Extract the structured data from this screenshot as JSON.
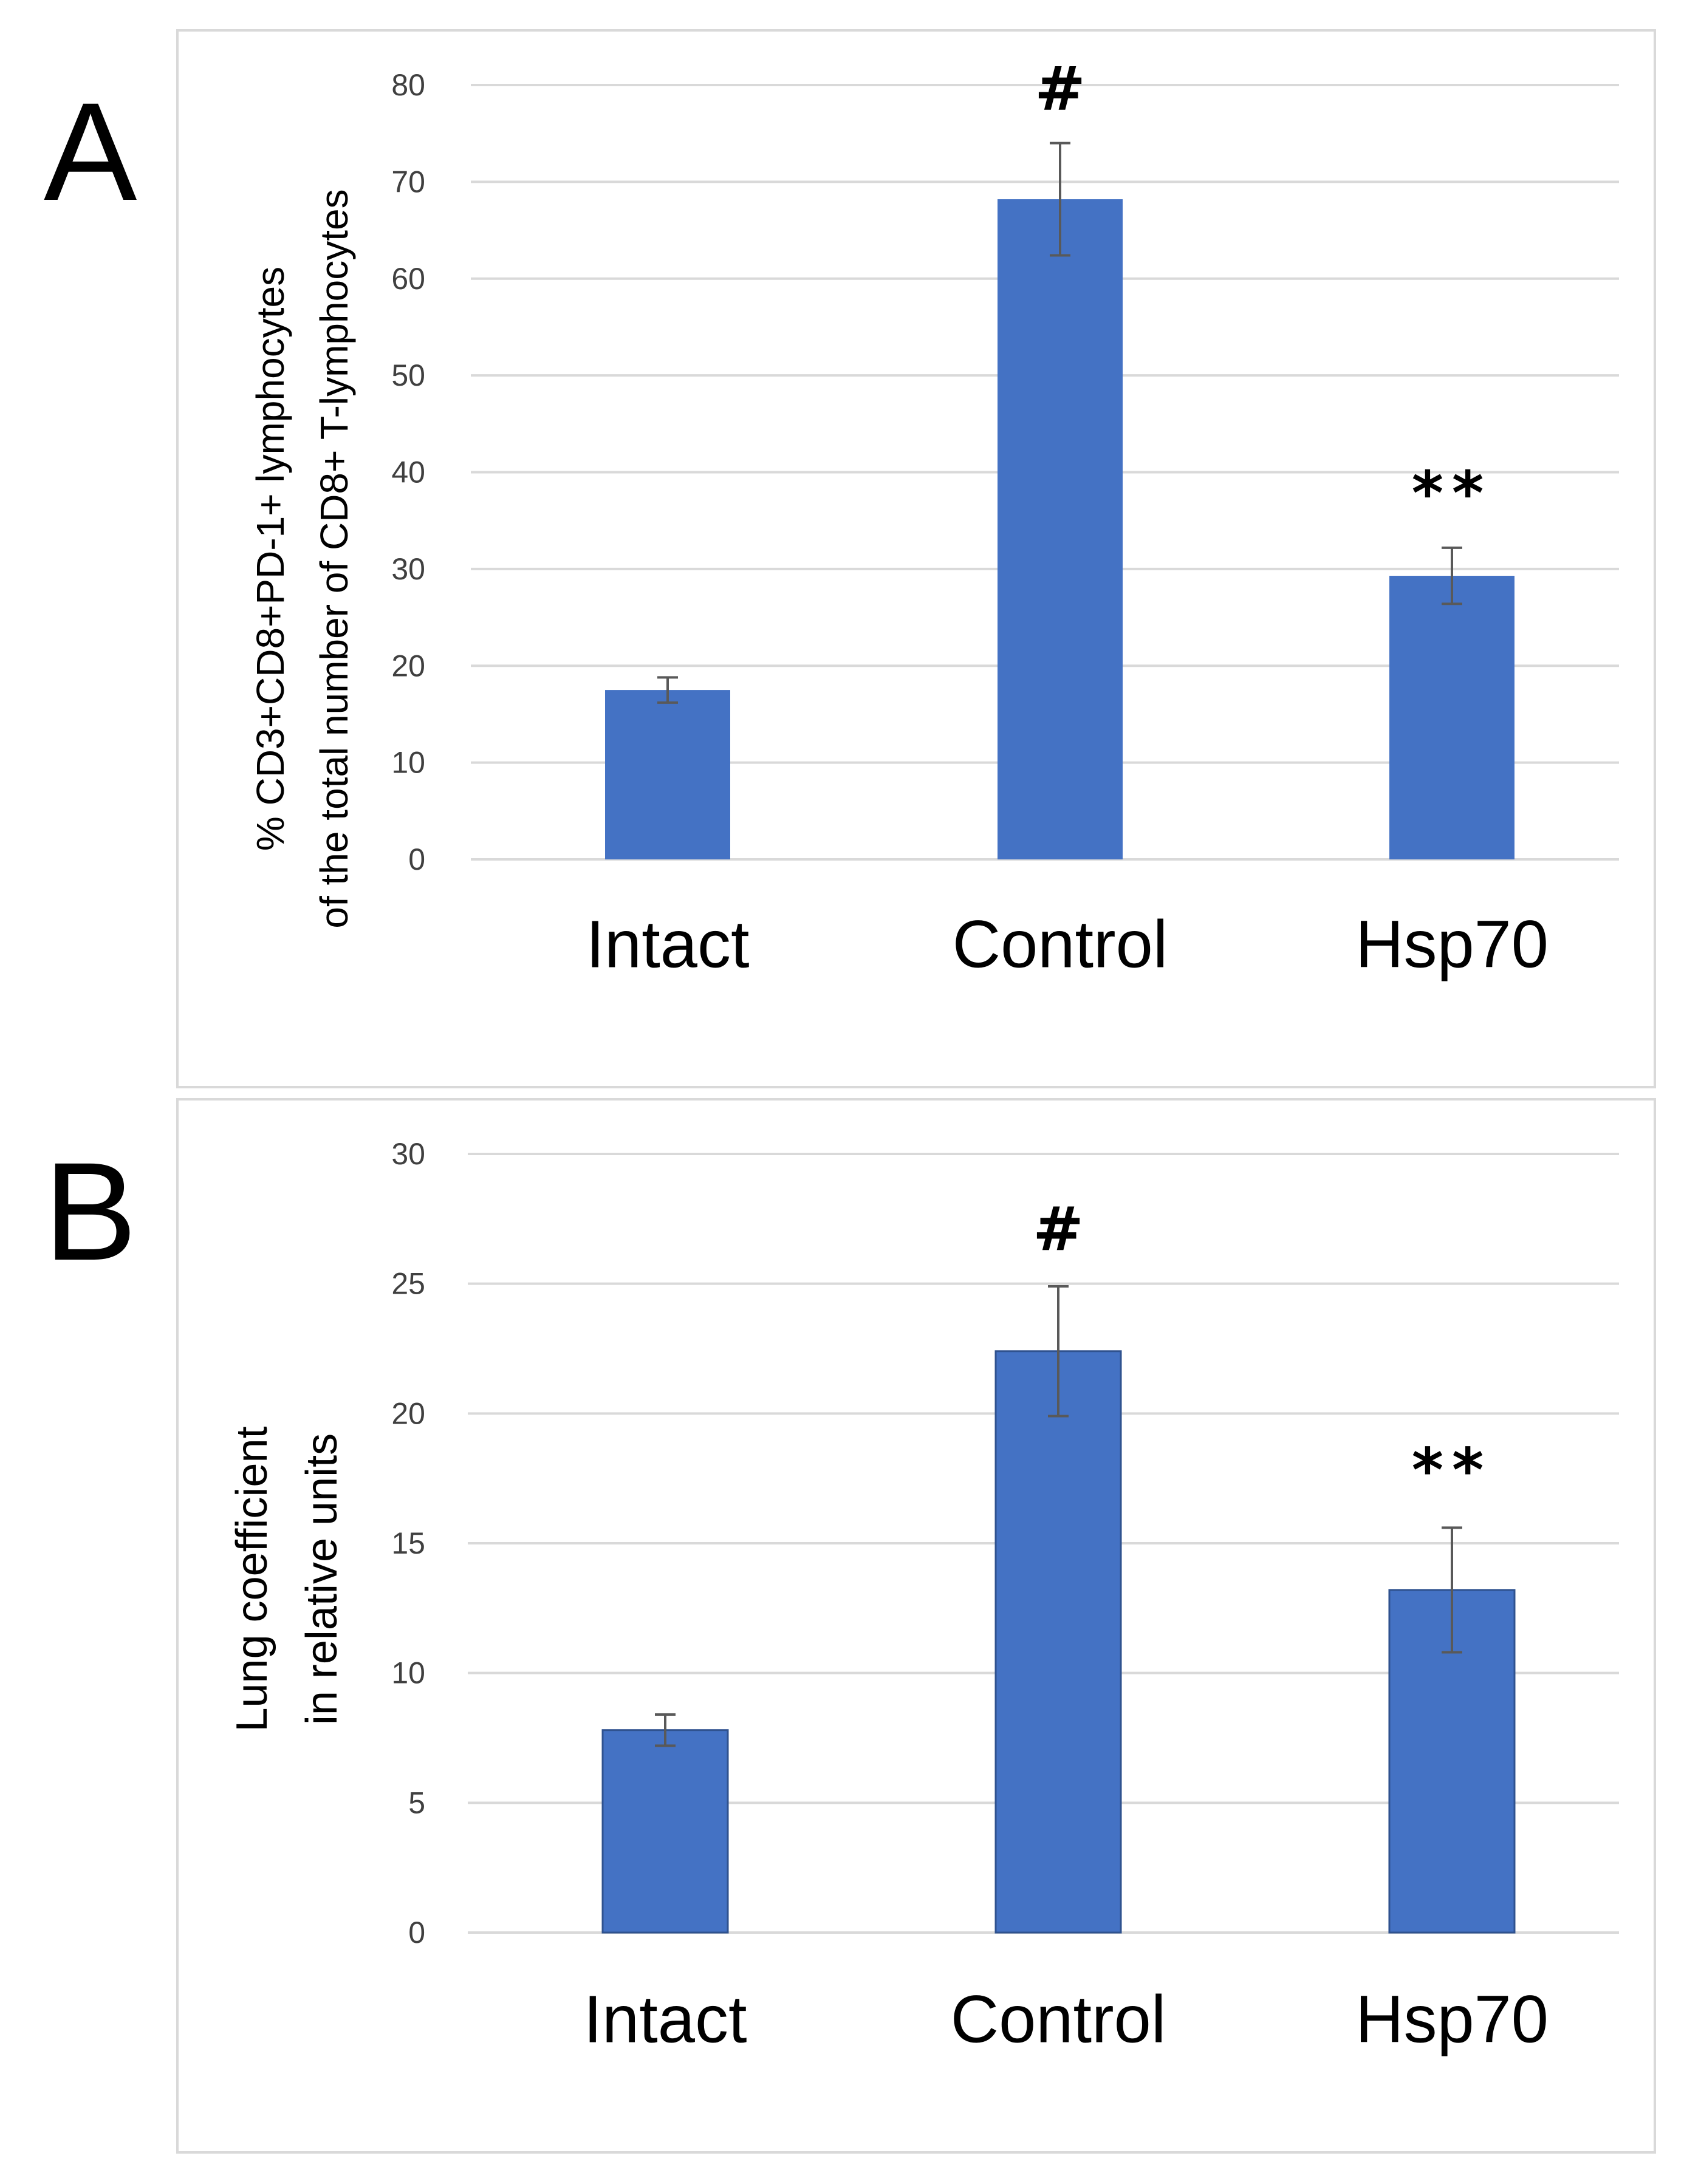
{
  "figure": {
    "panel_labels": [
      "A",
      "B"
    ]
  },
  "chart_data": [
    {
      "panel": "A",
      "type": "bar",
      "categories": [
        "Intact",
        "Control",
        "Hsp70"
      ],
      "values": [
        17.5,
        68.2,
        29.3
      ],
      "errors": [
        1.3,
        5.8,
        2.9
      ],
      "annotations": [
        "",
        "#",
        "**"
      ],
      "ylabel": [
        "% CD3+CD8+PD-1+ lymphocytes",
        "of the total number of CD8+ T-lymphocytes"
      ],
      "ylim": [
        0,
        80
      ],
      "yticks": [
        0,
        10,
        20,
        30,
        40,
        50,
        60,
        70,
        80
      ],
      "grid": true,
      "bar_color": "#4472C4"
    },
    {
      "panel": "B",
      "type": "bar",
      "categories": [
        "Intact",
        "Control",
        "Hsp70"
      ],
      "values": [
        7.8,
        22.4,
        13.2
      ],
      "errors": [
        0.6,
        2.5,
        2.4
      ],
      "annotations": [
        "",
        "#",
        "**"
      ],
      "ylabel": [
        "Lung coefficient",
        "in relative units"
      ],
      "ylim": [
        0,
        30
      ],
      "yticks": [
        0,
        5,
        10,
        15,
        20,
        25,
        30
      ],
      "grid": true,
      "bar_color": "#4472C4"
    }
  ]
}
